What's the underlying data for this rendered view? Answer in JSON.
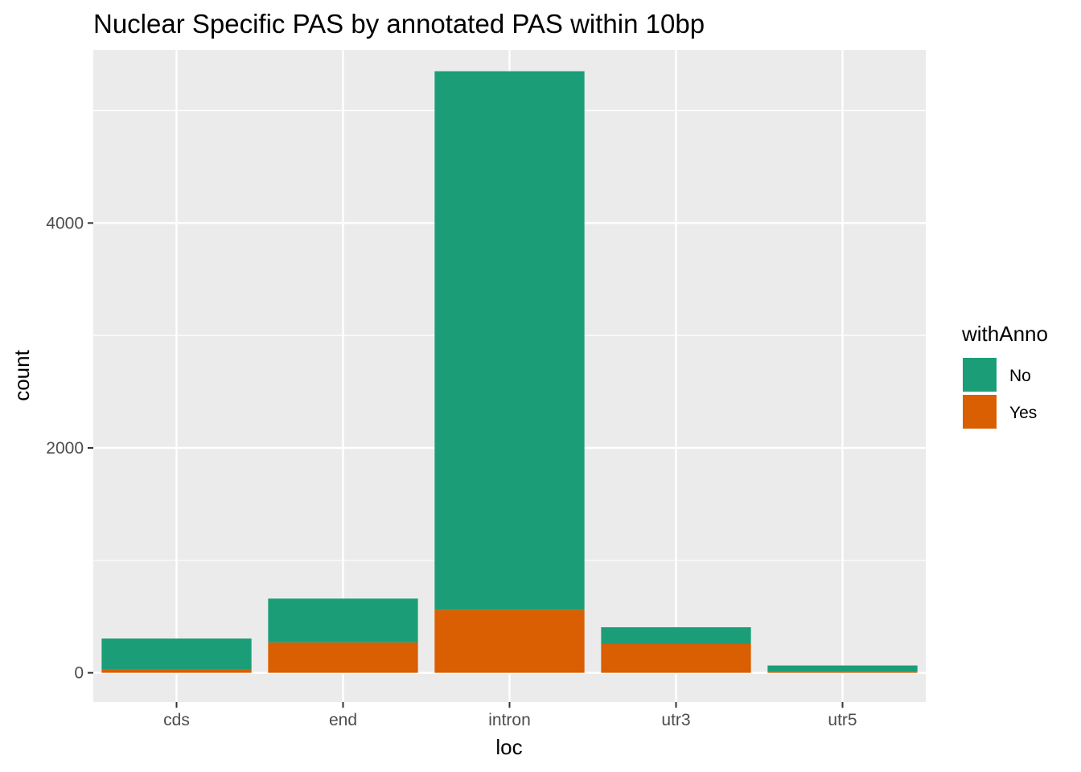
{
  "chart_data": {
    "type": "bar",
    "stacked": true,
    "title": "Nuclear  Specific PAS by annotated PAS within 10bp",
    "xlabel": "loc",
    "ylabel": "count",
    "categories": [
      "cds",
      "end",
      "intron",
      "utr3",
      "utr5"
    ],
    "series": [
      {
        "name": "Yes",
        "color": "#d95f02",
        "values": [
          30,
          270,
          560,
          255,
          10
        ]
      },
      {
        "name": "No",
        "color": "#1b9e77",
        "values": [
          275,
          390,
          4790,
          150,
          55
        ]
      }
    ],
    "ylim": [
      -260,
      5540
    ],
    "yticks": [
      0,
      2000,
      4000
    ],
    "ytick_labels": [
      "0",
      "2000",
      "4000"
    ],
    "grid": true,
    "legend": {
      "title": "withAnno",
      "position": "right",
      "items": [
        {
          "label": "No",
          "color": "#1b9e77"
        },
        {
          "label": "Yes",
          "color": "#d95f02"
        }
      ]
    }
  }
}
